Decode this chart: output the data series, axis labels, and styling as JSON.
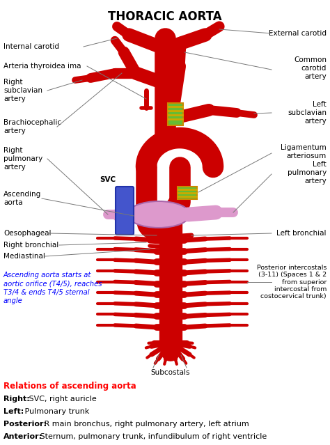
{
  "title": "THORACIC AORTA",
  "bg_color": "#ffffff",
  "red": "#cc0000",
  "blue": "#4455cc",
  "pink": "#dd99cc",
  "green": "#66bb33",
  "gold": "#ccaa00",
  "line_color": "#777777",
  "blue_note": "Ascending aorta starts at\naortic orifice (T4/5), reaches\nT3/4 & ends T4/5 sternal\nangle",
  "relations_title": "Relations of ascending aorta",
  "relations": [
    {
      "bold": "Right:",
      "rest": " SVC, right auricle"
    },
    {
      "bold": "Left:",
      "rest": " Pulmonary trunk"
    },
    {
      "bold": "Posterior:",
      "rest": " R main bronchus, right pulmonary artery, left atrium"
    },
    {
      "bold": "Anterior:",
      "rest": " Sternum, pulmonary trunk, infundibulum of right ventricle"
    }
  ]
}
